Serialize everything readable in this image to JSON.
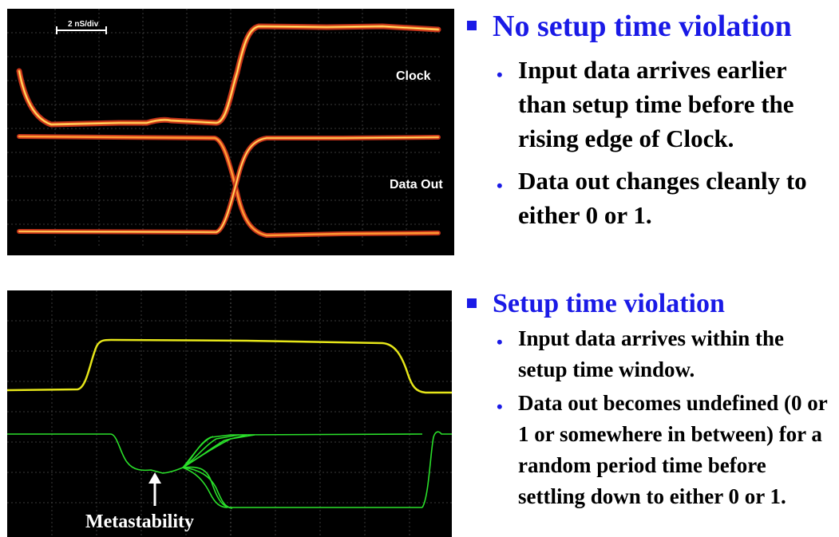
{
  "top": {
    "heading": "No setup time violation",
    "bullets": [
      "Input data arrives earlier than setup time before the rising edge of Clock.",
      "Data out changes cleanly to either 0 or 1."
    ],
    "scope": {
      "timescale_label": "2 nS/div",
      "clock_label": "Clock",
      "dataout_label": "Data Out"
    }
  },
  "bottom": {
    "heading": "Setup time violation",
    "bullets": [
      "Input data arrives within the setup time window.",
      "Data out becomes undefined (0 or 1 or somewhere in between) for a random period time before settling down to either 0 or 1."
    ],
    "scope": {
      "metastability_label": "Metastability"
    }
  },
  "colors": {
    "heading_blue": "#1a1ae6",
    "trace_orange": "#e8661e",
    "trace_yellow": "#e6e619",
    "trace_green": "#2adf2a",
    "grid": "#555555"
  }
}
